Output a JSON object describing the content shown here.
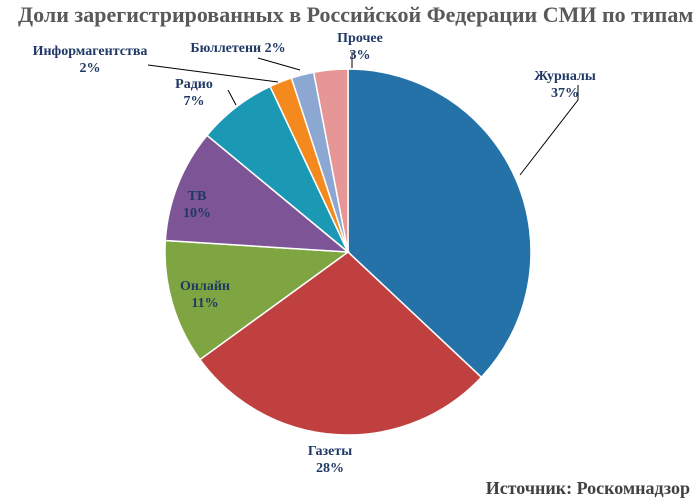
{
  "chart_data": {
    "type": "pie",
    "title": "Доли зарегистрированных в Российской Федерации СМИ по типам",
    "source": "Источник: Роскомнадзор",
    "slices": [
      {
        "label": "Журналы",
        "value": 37,
        "value_text": "37%",
        "color": "#2572A9"
      },
      {
        "label": "Газеты",
        "value": 28,
        "value_text": "28%",
        "color": "#C0403F"
      },
      {
        "label": "Онлайн",
        "value": 11,
        "value_text": "11%",
        "color": "#7EA541"
      },
      {
        "label": "ТВ",
        "value": 10,
        "value_text": "10%",
        "color": "#7D5496"
      },
      {
        "label": "Радио",
        "value": 7,
        "value_text": "7%",
        "color": "#1A98B4"
      },
      {
        "label": "Информагентства",
        "value": 2,
        "value_text": "2%",
        "color": "#F48A1E"
      },
      {
        "label": "Бюллетени",
        "value": 2,
        "value_text": "2%",
        "color": "#8CA8D2"
      },
      {
        "label": "Прочее",
        "value": 3,
        "value_text": "3%",
        "color": "#E69694"
      }
    ],
    "label_color": "#1F3864"
  }
}
